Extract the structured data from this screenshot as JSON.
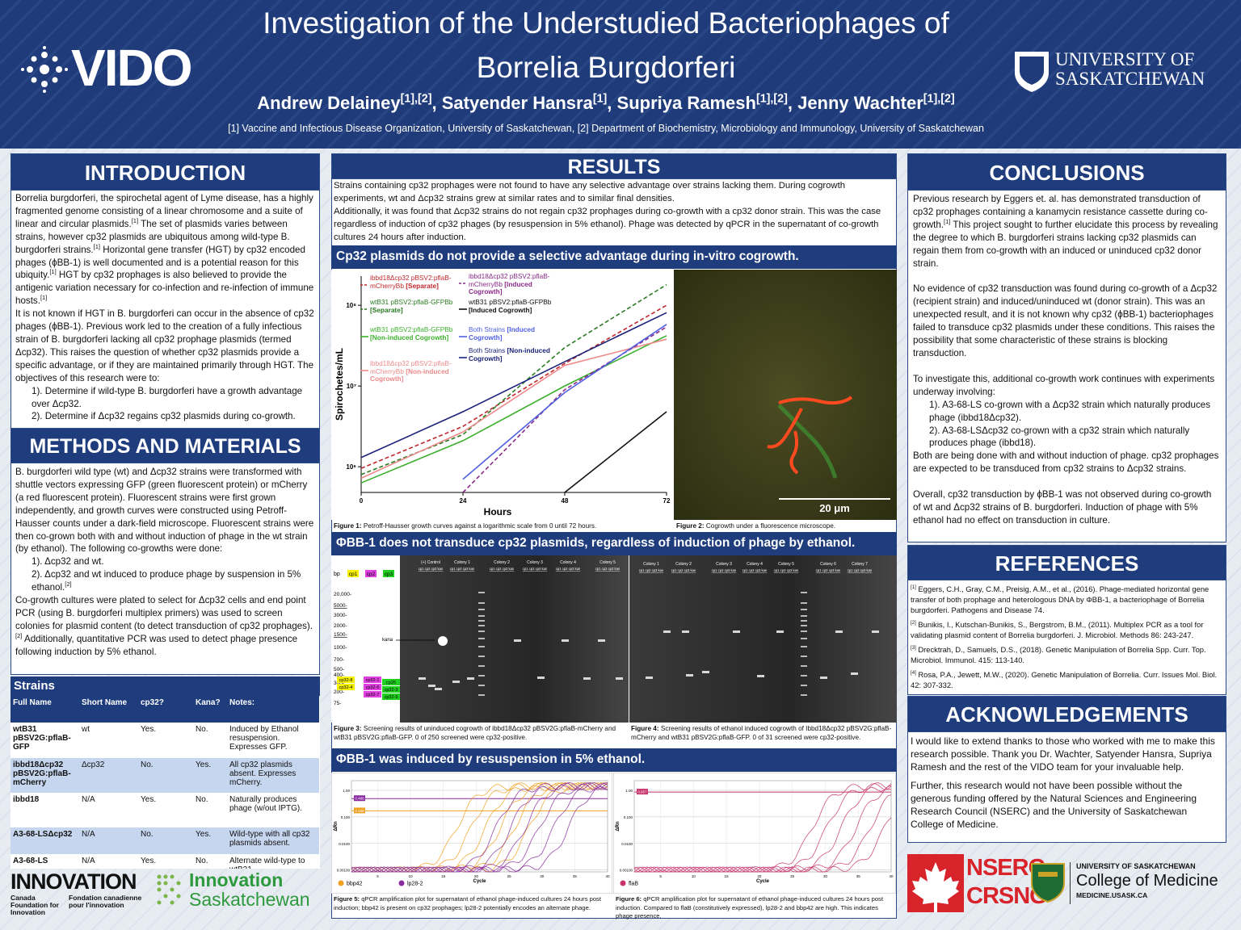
{
  "header": {
    "title_line1": "Investigation of the Understudied Bacteriophages of",
    "title_line2": "Borrelia Burgdorferi",
    "authors": "Andrew Delainey[1],[2], Satyender Hansra[1], Supriya Ramesh[1],[2], Jenny Wachter[1],[2]",
    "affiliations": "[1] Vaccine and Infectious Disease Organization, University of Saskatchewan, [2] Department of Biochemistry, Microbiology and Immunology, University of Saskatchewan",
    "logo_left": "VIDO",
    "logo_right_line1": "UNIVERSITY OF",
    "logo_right_line2": "SASKATCHEWAN"
  },
  "introduction": {
    "heading": "INTRODUCTION",
    "paragraphs": [
      "Borrelia burgdorferi, the spirochetal agent of Lyme disease, has a highly fragmented genome consisting of a linear chromosome and a suite of linear and circular plasmids.[1] The set of plasmids varies between strains, however cp32 plasmids are ubiquitous among wild-type B. burgdorferi strains.[1] Horizontal gene transfer (HGT) by cp32 encoded phages (ϕBB-1) is well documented and is a potential reason for this ubiquity.[1] HGT by cp32 prophages is also believed to provide the antigenic variation necessary for co-infection and re-infection of immune hosts.[1]",
      "It is not known if HGT in B. burgdorferi can occur in the absence of cp32 phages (ϕBB-1). Previous work led to the creation of a fully infectious strain of B. burgdorferi lacking all cp32 prophage plasmids (termed Δcp32). This raises the question of whether cp32 plasmids provide a specific advantage, or if they are maintained primarily through HGT. The objectives of this research were to:",
      "1). Determine if wild-type B. burgdorferi have a growth advantage over Δcp32.",
      "2). Determine if Δcp32 regains cp32 plasmids during co-growth."
    ]
  },
  "methods": {
    "heading": "METHODS AND MATERIALS",
    "paragraphs": [
      "B. burgdorferi wild type (wt) and Δcp32 strains were transformed with shuttle vectors expressing GFP (green fluorescent protein) or mCherry (a red fluorescent protein). Fluorescent strains were first grown independently, and growth curves were constructed using Petroff-Hausser counts under a dark-field microscope. Fluorescent strains were then co-grown both with and without induction of phage in the wt strain (by ethanol). The following co-growths were done:",
      "1). Δcp32 and wt.",
      "2). Δcp32 and wt induced to produce phage by suspension in 5% ethanol.[2]",
      "Co-growth cultures were plated to select for Δcp32 cells and end point PCR (using B. burgdorferi multiplex primers) was used to screen colonies for plasmid content (to detect transduction of cp32 prophages).[2] Additionally, quantitative PCR was used to detect phage presence following induction by 5% ethanol."
    ]
  },
  "strains": {
    "heading": "Strains",
    "columns": [
      "Full Name",
      "Short Name",
      "cp32?",
      "Kana?",
      "Notes:"
    ],
    "rows": [
      [
        "wtB31 pBSV2G:pflaB-GFP",
        "wt",
        "Yes.",
        "No.",
        "Induced by Ethanol resuspension. Expresses GFP."
      ],
      [
        "ibbd18Δcp32 pBSV2G:pflaB-mCherry",
        "Δcp32",
        "No.",
        "Yes.",
        "All cp32 plasmids absent. Expresses mCherry."
      ],
      [
        "ibbd18",
        "N/A",
        "Yes.",
        "No.",
        "Naturally produces phage (w/out IPTG)."
      ],
      [
        "A3-68-LSΔcp32",
        "N/A",
        "No.",
        "Yes.",
        "Wild-type with all cp32 plasmids absent."
      ],
      [
        "A3-68-LS",
        "N/A",
        "Yes.",
        "No.",
        "Alternate wild-type to wtB31."
      ]
    ]
  },
  "funders_left": {
    "innovation": "INNOVATION",
    "cfi_en": "Canada Foundation for Innovation",
    "cfi_fr": "Fondation canadienne pour l'innovation",
    "is_line1": "Innovation",
    "is_line2": "Saskatchewan"
  },
  "results": {
    "heading": "RESULTS",
    "paragraphs": [
      "Strains containing cp32 prophages were not found to have any selective advantage over strains lacking them. During cogrowth experiments, wt and Δcp32 strains grew at similar rates and to similar final densities.",
      "Additionally, it was found that Δcp32 strains do not regain cp32 prophages during co-growth with a cp32 donor strain. This was the case regardless of induction of cp32 phages (by resuspension in 5% ethanol). Phage was detected by qPCR in the supernatant of co-growth cultures 24 hours after induction."
    ],
    "bar1": "Cp32 plasmids do not provide a selective advantage during in-vitro cogrowth.",
    "bar2": "ΦBB-1 does not transduce cp32 plasmids, regardless of induction of phage by ethanol.",
    "bar3": "ΦBB-1 was induced by resuspension in 5% ethanol.",
    "figure1": {
      "label": "Figure 1:",
      "caption": " Petroff-Hausser growth curves against a logarithmic scale from 0 until 72 hours."
    },
    "figure2": {
      "label": "Figure 2:",
      "caption": " Cogrowth under a fluorescence microscope.",
      "scale_bar": "20 μm"
    },
    "figure3": {
      "label": "Figure 3:",
      "caption": " Screening results of uninduced cogrowth of ibbd18Δcp32 pBSV2G:pflaB-mCherry and wtB31 pBSV2G:pflaB-GFP. 0 of 250 screened were cp32-positive."
    },
    "figure4": {
      "label": "Figure 4:",
      "caption": " Screening results of ethanol induced cogrowth of Ibbd18Δcp32 pBSV2G:pflaB-mCherry and wtB31 pBSV2G:pflaB-GFP. 0 of 31 screened were cp32-positive."
    },
    "figure5": {
      "label": "Figure 5:",
      "caption": " qPCR amplification plot for supernatant of ethanol phage-induced cultures 24 hours post induction; bbp42 is present on cp32 prophages; lp28-2 potentially encodes an alternate phage."
    },
    "figure6": {
      "label": "Figure 6:",
      "caption": " qPCR amplification plot for supernatant of ethanol phage-induced cultures 24 hours post induction. Compared to flaB (constitutively expressed), lp28-2 and bbp42 are high. This indicates phage presence."
    }
  },
  "growth_chart": {
    "type": "line",
    "x_label": "Hours",
    "y_label": "Spirochetes/mL",
    "x": [
      0,
      24,
      48,
      72
    ],
    "xlim": [
      0,
      72
    ],
    "xticks": [
      0,
      24,
      48,
      72
    ],
    "log_y": true,
    "ylim": [
      480000,
      230000000
    ],
    "yticks": [
      {
        "value": 1000000,
        "label": "10⁶"
      },
      {
        "value": 10000000,
        "label": "10⁷"
      },
      {
        "value": 100000000,
        "label": "10⁸"
      }
    ],
    "series": [
      {
        "name": "ibbd18Δcp32 pBSV2:pflaB-mCherryBb [Separate]",
        "color": "#c0282d",
        "dash": true,
        "values": [
          955000,
          3160000,
          19000000,
          100000000
        ]
      },
      {
        "name": "wtB31 pBSV2:pflaB-GFPBb [Separate]",
        "color": "#2a7a22",
        "dash": true,
        "values": [
          800000,
          2500000,
          30000000,
          180000000
        ]
      },
      {
        "name": "wtB31 pBSV2:pflaB-GFPBb [Non-induced Cogrowth]",
        "color": "#3cb02c",
        "dash": false,
        "values": [
          630000,
          2100000,
          10000000,
          42000000
        ]
      },
      {
        "name": "ibbd18Δcp32 pBSV2:pflaB-mCherryBb [Non-induced Cogrowth]",
        "color": "#ec8a8a",
        "dash": false,
        "values": [
          720000,
          2700000,
          18000000,
          38000000
        ]
      },
      {
        "name": "ibbd18Δcp32 pBSV2:pflaB-mCherryBb [Induced Cogrowth]",
        "color": "#8a2a8a",
        "dash": true,
        "values": [
          null,
          480000,
          9000000,
          54000000
        ]
      },
      {
        "name": "wtB31 pBSV2:pflaB-GFPBb [Induced Cogrowth]",
        "color": "#111111",
        "dash": false,
        "values": [
          null,
          null,
          480000,
          4800000
        ]
      },
      {
        "name": "Both Strains [Induced Cogrowth]",
        "color": "#5060e0",
        "dash": false,
        "values": [
          null,
          700000,
          8300000,
          58000000
        ]
      },
      {
        "name": "Both Strains [Non-induced Cogrowth]",
        "color": "#1c237a",
        "dash": false,
        "values": [
          1300000,
          4800000,
          20000000,
          81000000
        ]
      }
    ]
  },
  "gel3": {
    "bp": "bp",
    "primers": [
      "cp1",
      "cp2",
      "cp3"
    ],
    "ladder": [
      "20,000-",
      "5000-",
      "3000-",
      "2000-",
      "1500-",
      "1000-",
      "700-",
      "500-",
      "400-",
      "300-",
      "200-",
      "75-"
    ],
    "kana": "kana",
    "primer_key": [
      [
        "cp32-8",
        "cp32-4"
      ],
      [
        "cp32-1",
        "cp32-6",
        "cp32-7"
      ],
      [
        "cp26",
        "cp32-3",
        "cp32-9"
      ]
    ],
    "lanes": [
      "(+) Control",
      "Colony 1",
      "Colony 2",
      "Colony 3",
      "Colony 4",
      "Colony 5"
    ],
    "lane_sublabel": "cp1 cp2 cp3 kan"
  },
  "gel4": {
    "lanes": [
      "Colony 1",
      "Colony 2",
      "Colony 3",
      "Colony 4",
      "Colony 5",
      "Colony 6",
      "Colony 7"
    ],
    "lane_sublabel": "cp1 cp2 cp3 kan"
  },
  "qpcr5": {
    "y_label": "ΔRn",
    "x_label": "Cycle",
    "log_y": true,
    "ylim": [
      0.00085,
      2.3
    ],
    "xlim": [
      1,
      40
    ],
    "yticks": [
      {
        "value": 1,
        "label": "1.00"
      },
      {
        "value": 0.1,
        "label": "0.100"
      },
      {
        "value": 0.01,
        "label": "0.0100"
      },
      {
        "value": 0.001,
        "label": "0.00100"
      }
    ],
    "xticks": [
      5,
      10,
      15,
      20,
      25,
      30,
      35,
      40
    ],
    "thresholds": [
      {
        "value": 0.486,
        "color": "#8a2aa0"
      },
      {
        "value": 0.168,
        "color": "#f0a020"
      }
    ],
    "series": [
      {
        "name": "bbp42",
        "color": "#f0a020"
      },
      {
        "name": "lp28-2",
        "color": "#8a2aa0"
      }
    ]
  },
  "qpcr6": {
    "y_label": "ΔRn",
    "x_label": "Cycle",
    "log_y": true,
    "ylim": [
      0.00085,
      2.3
    ],
    "xlim": [
      1,
      40
    ],
    "yticks": [
      {
        "value": 1,
        "label": "1.00"
      },
      {
        "value": 0.1,
        "label": "0.100"
      },
      {
        "value": 0.01,
        "label": "0.0100"
      },
      {
        "value": 0.001,
        "label": "0.00100"
      }
    ],
    "xticks": [
      5,
      10,
      15,
      20,
      25,
      30,
      35,
      40
    ],
    "thresholds": [
      {
        "value": 0.857,
        "color": "#c8326a"
      }
    ],
    "series": [
      {
        "name": "flaB",
        "color": "#c8326a"
      }
    ]
  },
  "conclusions": {
    "heading": "CONCLUSIONS",
    "paragraphs": [
      "Previous research by Eggers et. al. has demonstrated transduction of cp32 prophages containing a kanamycin resistance cassette during co-growth.[1] This project sought to further elucidate this process by revealing the degree to which B. burgdorferi strains lacking cp32 plasmids can regain them from co-growth with an induced or uninduced cp32 donor strain.",
      "No evidence of cp32 transduction was found during co-growth of a Δcp32 (recipient strain) and induced/uninduced wt (donor strain). This was an unexpected result, and it is not known why cp32 (ϕBB-1) bacteriophages failed to transduce cp32 plasmids under these conditions. This raises the possibility that some characteristic of these strains is blocking transduction.",
      "To investigate this, additional co-growth work continues with experiments underway involving:",
      "1). A3-68-LS co-grown with a Δcp32 strain which naturally produces phage (ibbd18Δcp32).",
      "2). A3-68-LSΔcp32 co-grown with a cp32 strain which naturally produces phage (ibbd18).",
      "Both are being done with and without induction of phage. cp32 prophages are expected to be transduced from cp32 strains to Δcp32 strains.",
      "Overall, cp32 transduction by ϕBB-1 was not observed during co-growth of wt and Δcp32 strains of B. burgdorferi. Induction of phage with 5% ethanol had no effect on transduction in culture."
    ]
  },
  "references": {
    "heading": "REFERENCES",
    "items": [
      "[1] Eggers, C.H., Gray, C.M., Preisig, A.M., et al., (2016). Phage-mediated horizontal gene transfer of both prophage and heterologous DNA by ΦBB-1, a bacteriophage of Borrelia burgdorferi. Pathogens and Disease 74.",
      "[2] Bunikis, I., Kutschan-Bunikis, S., Bergstrom, B.M., (2011). Multiplex PCR as a tool for validating plasmid content of Borrelia burgdorferi. J. Microbiol. Methods 86: 243-247.",
      "[3] Drecktrah, D., Samuels, D.S., (2018). Genetic Manipulation of Borrelia Spp. Curr. Top. Microbiol. Immunol. 415: 113-140.",
      "[4] Rosa, P.A., Jewett, M.W., (2020). Genetic Manipulation of Borrelia. Curr. Issues Mol. Biol. 42: 307-332."
    ]
  },
  "acknowledgements": {
    "heading": "ACKNOWLEDGEMENTS",
    "paragraphs": [
      "I would like to extend thanks to those who worked with me to make this research possible. Thank you Dr. Wachter, Satyender Hansra, Supriya Ramesh and the rest of the VIDO team for your invaluable help.",
      "Further, this research would not have been possible without the generous funding offered by the Natural Sciences and Engineering Research Council (NSERC) and the University of Saskatchewan College of Medicine."
    ]
  },
  "funders_right": {
    "nserc": "NSERC",
    "crsng": "CRSNG",
    "usask": "UNIVERSITY OF SASKATCHEWAN",
    "college": "College of Medicine",
    "url": "MEDICINE.USASK.CA"
  }
}
